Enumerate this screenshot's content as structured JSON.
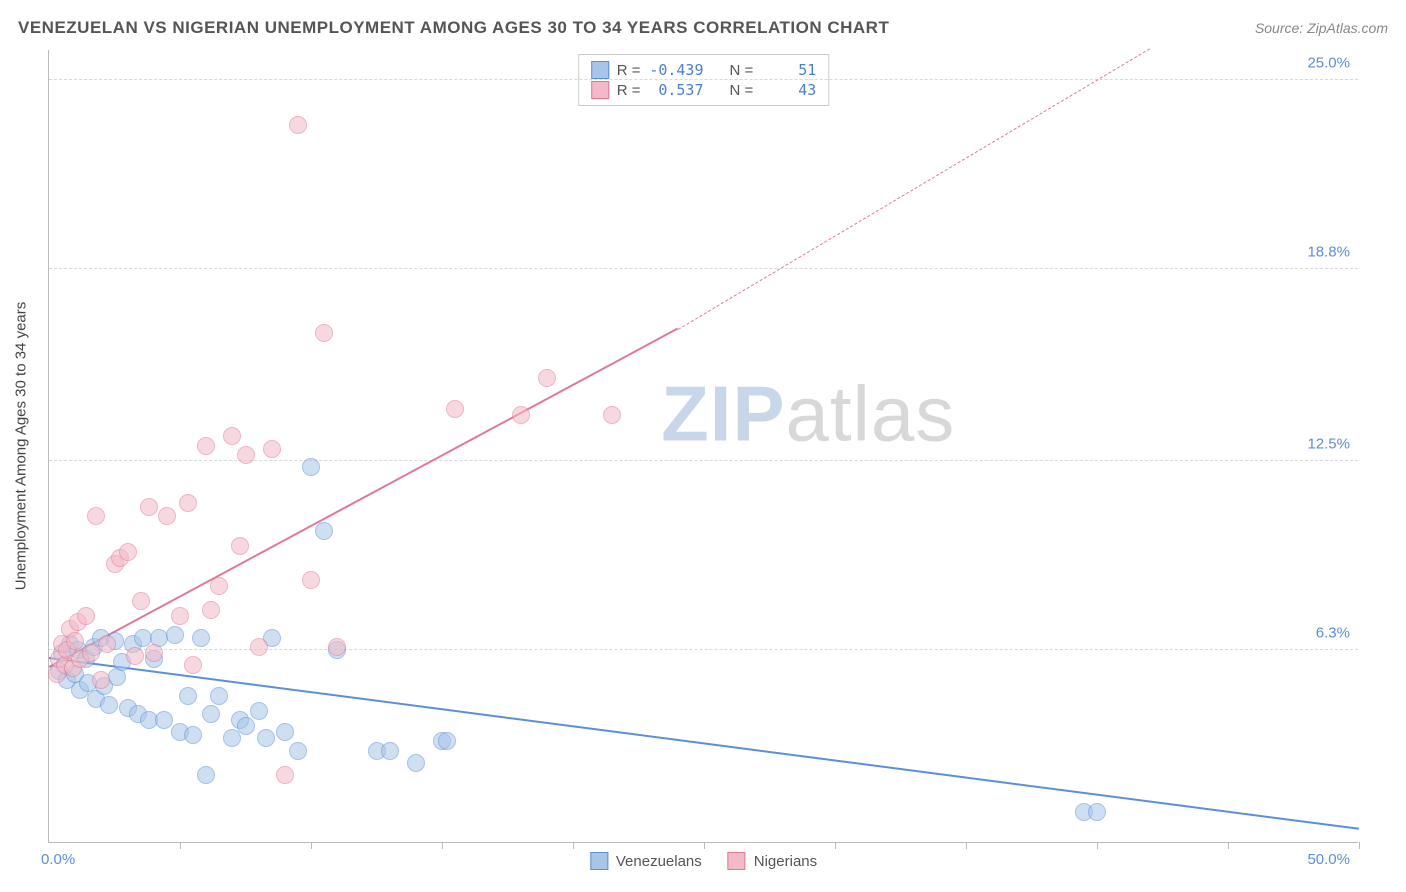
{
  "title": "VENEZUELAN VS NIGERIAN UNEMPLOYMENT AMONG AGES 30 TO 34 YEARS CORRELATION CHART",
  "source_label": "Source:",
  "source_name": "ZipAtlas.com",
  "y_axis_title": "Unemployment Among Ages 30 to 34 years",
  "watermark_a": "ZIP",
  "watermark_b": "atlas",
  "chart": {
    "type": "scatter",
    "xlim": [
      0,
      50
    ],
    "ylim": [
      0,
      26
    ],
    "x_tick_positions": [
      5,
      10,
      15,
      20,
      25,
      30,
      35,
      40,
      45,
      50
    ],
    "y_grid": [
      {
        "value": 6.3,
        "label": "6.3%"
      },
      {
        "value": 12.5,
        "label": "12.5%"
      },
      {
        "value": 18.8,
        "label": "18.8%"
      },
      {
        "value": 25.0,
        "label": "25.0%"
      }
    ],
    "x_origin_label": "0.0%",
    "x_end_label": "50.0%",
    "background_color": "#ffffff",
    "grid_color": "#d8d8d8",
    "axis_color": "#bbbbbb",
    "label_color": "#5b8fd6",
    "marker_radius": 9,
    "marker_opacity": 0.55,
    "series": [
      {
        "name": "Venezuelans",
        "color_fill": "#a8c5e8",
        "color_stroke": "#5b8fd6",
        "R": "-0.439",
        "N": "51",
        "trend": {
          "x1": 0,
          "y1": 6.0,
          "x2": 50,
          "y2": 0.4,
          "dash": false,
          "width": 2.5
        },
        "points": [
          [
            0.4,
            5.6
          ],
          [
            0.5,
            6.2
          ],
          [
            0.7,
            5.3
          ],
          [
            0.8,
            6.5
          ],
          [
            1.0,
            5.5
          ],
          [
            1.1,
            6.3
          ],
          [
            1.2,
            5.0
          ],
          [
            1.4,
            6.0
          ],
          [
            1.5,
            5.2
          ],
          [
            1.7,
            6.4
          ],
          [
            1.8,
            4.7
          ],
          [
            2.0,
            6.7
          ],
          [
            2.1,
            5.1
          ],
          [
            2.3,
            4.5
          ],
          [
            2.5,
            6.6
          ],
          [
            2.6,
            5.4
          ],
          [
            2.8,
            5.9
          ],
          [
            3.0,
            4.4
          ],
          [
            3.2,
            6.5
          ],
          [
            3.4,
            4.2
          ],
          [
            3.6,
            6.7
          ],
          [
            3.8,
            4.0
          ],
          [
            4.0,
            6.0
          ],
          [
            4.2,
            6.7
          ],
          [
            4.4,
            4.0
          ],
          [
            4.8,
            6.8
          ],
          [
            5.0,
            3.6
          ],
          [
            5.3,
            4.8
          ],
          [
            5.5,
            3.5
          ],
          [
            5.8,
            6.7
          ],
          [
            6.0,
            2.2
          ],
          [
            6.2,
            4.2
          ],
          [
            6.5,
            4.8
          ],
          [
            7.0,
            3.4
          ],
          [
            7.3,
            4.0
          ],
          [
            7.5,
            3.8
          ],
          [
            8.0,
            4.3
          ],
          [
            8.3,
            3.4
          ],
          [
            8.5,
            6.7
          ],
          [
            9.0,
            3.6
          ],
          [
            9.5,
            3.0
          ],
          [
            10.0,
            12.3
          ],
          [
            10.5,
            10.2
          ],
          [
            11.0,
            6.3
          ],
          [
            12.5,
            3.0
          ],
          [
            13.0,
            3.0
          ],
          [
            14.0,
            2.6
          ],
          [
            15.0,
            3.3
          ],
          [
            15.2,
            3.3
          ],
          [
            39.5,
            1.0
          ],
          [
            40.0,
            1.0
          ]
        ]
      },
      {
        "name": "Nigerians",
        "color_fill": "#f3b9c7",
        "color_stroke": "#e07a94",
        "R": "0.537",
        "N": "43",
        "trend_solid": {
          "x1": 0,
          "y1": 5.7,
          "x2": 24,
          "y2": 16.8,
          "dash": false,
          "width": 2.5
        },
        "trend_dash": {
          "x1": 24,
          "y1": 16.8,
          "x2": 42,
          "y2": 26.0,
          "dash": true,
          "width": 1.5
        },
        "points": [
          [
            0.3,
            5.5
          ],
          [
            0.4,
            6.0
          ],
          [
            0.5,
            6.5
          ],
          [
            0.6,
            5.8
          ],
          [
            0.7,
            6.3
          ],
          [
            0.8,
            7.0
          ],
          [
            0.9,
            5.7
          ],
          [
            1.0,
            6.6
          ],
          [
            1.1,
            7.2
          ],
          [
            1.2,
            6.0
          ],
          [
            1.4,
            7.4
          ],
          [
            1.6,
            6.2
          ],
          [
            1.8,
            10.7
          ],
          [
            2.0,
            5.3
          ],
          [
            2.2,
            6.5
          ],
          [
            2.5,
            9.1
          ],
          [
            2.7,
            9.3
          ],
          [
            3.0,
            9.5
          ],
          [
            3.3,
            6.1
          ],
          [
            3.5,
            7.9
          ],
          [
            3.8,
            11.0
          ],
          [
            4.0,
            6.2
          ],
          [
            4.5,
            10.7
          ],
          [
            5.0,
            7.4
          ],
          [
            5.3,
            11.1
          ],
          [
            5.5,
            5.8
          ],
          [
            6.0,
            13.0
          ],
          [
            6.2,
            7.6
          ],
          [
            6.5,
            8.4
          ],
          [
            7.0,
            13.3
          ],
          [
            7.3,
            9.7
          ],
          [
            7.5,
            12.7
          ],
          [
            8.0,
            6.4
          ],
          [
            8.5,
            12.9
          ],
          [
            9.0,
            2.2
          ],
          [
            9.5,
            23.5
          ],
          [
            10.0,
            8.6
          ],
          [
            10.5,
            16.7
          ],
          [
            11.0,
            6.4
          ],
          [
            15.5,
            14.2
          ],
          [
            18.0,
            14.0
          ],
          [
            19.0,
            15.2
          ],
          [
            21.5,
            14.0
          ]
        ]
      }
    ]
  },
  "legend_top": {
    "rows": [
      {
        "swatch_fill": "#a8c5e8",
        "swatch_stroke": "#5b8fd6",
        "r_label": "R =",
        "r_value": "-0.439",
        "n_label": "N =",
        "n_value": "51"
      },
      {
        "swatch_fill": "#f3b9c7",
        "swatch_stroke": "#e07a94",
        "r_label": "R =",
        "r_value": "0.537",
        "n_label": "N =",
        "n_value": "43"
      }
    ]
  },
  "legend_bottom": [
    {
      "swatch_fill": "#a8c5e8",
      "swatch_stroke": "#5b8fd6",
      "label": "Venezuelans"
    },
    {
      "swatch_fill": "#f3b9c7",
      "swatch_stroke": "#e07a94",
      "label": "Nigerians"
    }
  ]
}
